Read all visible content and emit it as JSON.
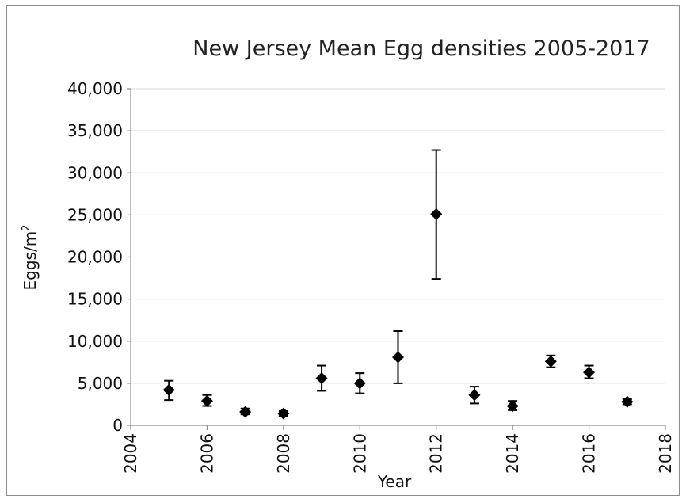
{
  "chart_data": {
    "type": "scatter",
    "title": "New Jersey Mean Egg densities 2005-2017",
    "xlabel": "Year",
    "ylabel": "Eggs/m",
    "ylabel_superscript": "2",
    "xlim": [
      2004,
      2018
    ],
    "ylim": [
      0,
      40000
    ],
    "x_ticks": [
      2004,
      2006,
      2008,
      2010,
      2012,
      2014,
      2016,
      2018
    ],
    "x_tick_labels": [
      "2004",
      "2006",
      "2008",
      "2010",
      "2012",
      "2014",
      "2016",
      "2018"
    ],
    "y_ticks": [
      0,
      5000,
      10000,
      15000,
      20000,
      25000,
      30000,
      35000,
      40000
    ],
    "y_tick_labels": [
      "0",
      "5,000",
      "10,000",
      "15,000",
      "20,000",
      "25,000",
      "30,000",
      "35,000",
      "40,000"
    ],
    "grid": "horizontal",
    "marker": "diamond",
    "marker_color": "#000000",
    "points": [
      {
        "x": 2005,
        "y": 4200,
        "err_low": 3000,
        "err_high": 5300
      },
      {
        "x": 2006,
        "y": 2900,
        "err_low": 2300,
        "err_high": 3600
      },
      {
        "x": 2007,
        "y": 1600,
        "err_low": 1300,
        "err_high": 2000
      },
      {
        "x": 2008,
        "y": 1400,
        "err_low": 1100,
        "err_high": 1700
      },
      {
        "x": 2009,
        "y": 5600,
        "err_low": 4100,
        "err_high": 7100
      },
      {
        "x": 2010,
        "y": 5000,
        "err_low": 3800,
        "err_high": 6200
      },
      {
        "x": 2011,
        "y": 8100,
        "err_low": 5000,
        "err_high": 11200
      },
      {
        "x": 2012,
        "y": 25100,
        "err_low": 17400,
        "err_high": 32700
      },
      {
        "x": 2013,
        "y": 3600,
        "err_low": 2600,
        "err_high": 4600
      },
      {
        "x": 2014,
        "y": 2300,
        "err_low": 1800,
        "err_high": 2900
      },
      {
        "x": 2015,
        "y": 7600,
        "err_low": 6900,
        "err_high": 8300
      },
      {
        "x": 2016,
        "y": 6300,
        "err_low": 5600,
        "err_high": 7100
      },
      {
        "x": 2017,
        "y": 2800,
        "err_low": 2500,
        "err_high": 3100
      }
    ]
  }
}
